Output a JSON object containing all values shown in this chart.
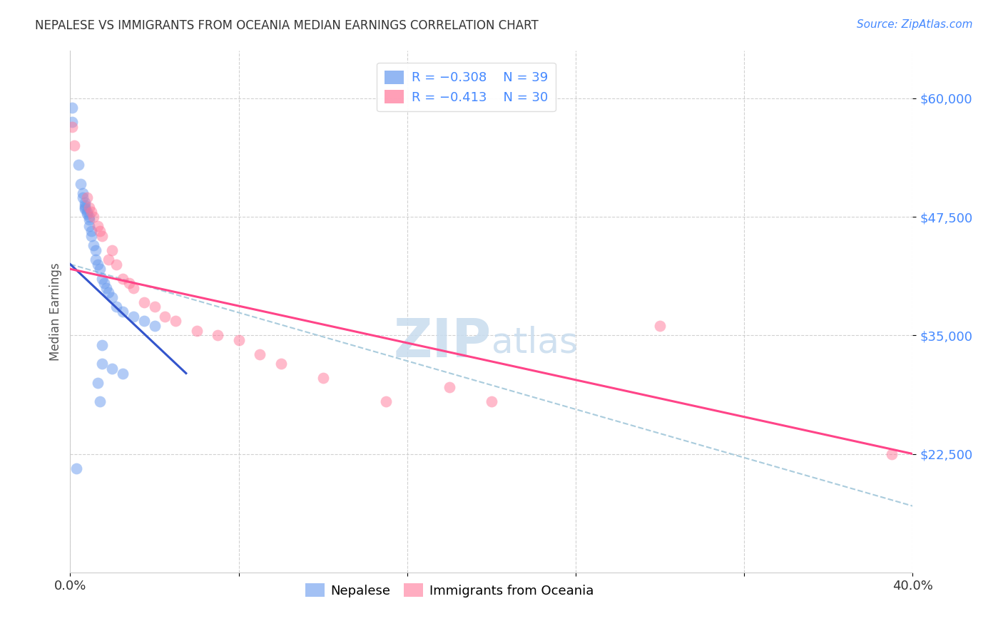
{
  "title": "NEPALESE VS IMMIGRANTS FROM OCEANIA MEDIAN EARNINGS CORRELATION CHART",
  "source": "Source: ZipAtlas.com",
  "ylabel": "Median Earnings",
  "y_ticks": [
    22500,
    35000,
    47500,
    60000
  ],
  "y_tick_labels": [
    "$22,500",
    "$35,000",
    "$47,500",
    "$60,000"
  ],
  "x_range": [
    0.0,
    0.4
  ],
  "y_range": [
    10000,
    65000
  ],
  "watermark_zip": "ZIP",
  "watermark_atlas": "atlas",
  "legend_blue_r": "-0.308",
  "legend_blue_n": "39",
  "legend_pink_r": "-0.413",
  "legend_pink_n": "30",
  "blue_color": "#6699EE",
  "pink_color": "#FF7799",
  "blue_line_color": "#3355CC",
  "pink_line_color": "#FF4488",
  "dashed_line_color": "#AACCDD",
  "blue_scatter": [
    [
      0.001,
      59000
    ],
    [
      0.001,
      57500
    ],
    [
      0.004,
      53000
    ],
    [
      0.005,
      51000
    ],
    [
      0.006,
      50000
    ],
    [
      0.006,
      49500
    ],
    [
      0.007,
      49000
    ],
    [
      0.007,
      48700
    ],
    [
      0.007,
      48500
    ],
    [
      0.007,
      48300
    ],
    [
      0.008,
      48000
    ],
    [
      0.008,
      47800
    ],
    [
      0.009,
      47500
    ],
    [
      0.009,
      47200
    ],
    [
      0.009,
      46500
    ],
    [
      0.01,
      46000
    ],
    [
      0.01,
      45500
    ],
    [
      0.011,
      44500
    ],
    [
      0.012,
      44000
    ],
    [
      0.012,
      43000
    ],
    [
      0.013,
      42500
    ],
    [
      0.014,
      42000
    ],
    [
      0.015,
      41000
    ],
    [
      0.016,
      40500
    ],
    [
      0.017,
      40000
    ],
    [
      0.018,
      39500
    ],
    [
      0.02,
      39000
    ],
    [
      0.022,
      38000
    ],
    [
      0.025,
      37500
    ],
    [
      0.03,
      37000
    ],
    [
      0.035,
      36500
    ],
    [
      0.04,
      36000
    ],
    [
      0.015,
      34000
    ],
    [
      0.015,
      32000
    ],
    [
      0.02,
      31500
    ],
    [
      0.025,
      31000
    ],
    [
      0.013,
      30000
    ],
    [
      0.014,
      28000
    ],
    [
      0.003,
      21000
    ]
  ],
  "pink_scatter": [
    [
      0.001,
      57000
    ],
    [
      0.002,
      55000
    ],
    [
      0.008,
      49500
    ],
    [
      0.009,
      48500
    ],
    [
      0.01,
      48000
    ],
    [
      0.011,
      47500
    ],
    [
      0.013,
      46500
    ],
    [
      0.014,
      46000
    ],
    [
      0.015,
      45500
    ],
    [
      0.018,
      43000
    ],
    [
      0.02,
      44000
    ],
    [
      0.022,
      42500
    ],
    [
      0.025,
      41000
    ],
    [
      0.028,
      40500
    ],
    [
      0.03,
      40000
    ],
    [
      0.035,
      38500
    ],
    [
      0.04,
      38000
    ],
    [
      0.045,
      37000
    ],
    [
      0.05,
      36500
    ],
    [
      0.06,
      35500
    ],
    [
      0.07,
      35000
    ],
    [
      0.08,
      34500
    ],
    [
      0.09,
      33000
    ],
    [
      0.1,
      32000
    ],
    [
      0.12,
      30500
    ],
    [
      0.15,
      28000
    ],
    [
      0.18,
      29500
    ],
    [
      0.2,
      28000
    ],
    [
      0.28,
      36000
    ],
    [
      0.39,
      22500
    ]
  ],
  "blue_line": [
    [
      0.0,
      42500
    ],
    [
      0.055,
      31000
    ]
  ],
  "pink_line": [
    [
      0.0,
      42000
    ],
    [
      0.4,
      22500
    ]
  ],
  "dashed_line": [
    [
      0.0,
      42500
    ],
    [
      0.4,
      17000
    ]
  ]
}
